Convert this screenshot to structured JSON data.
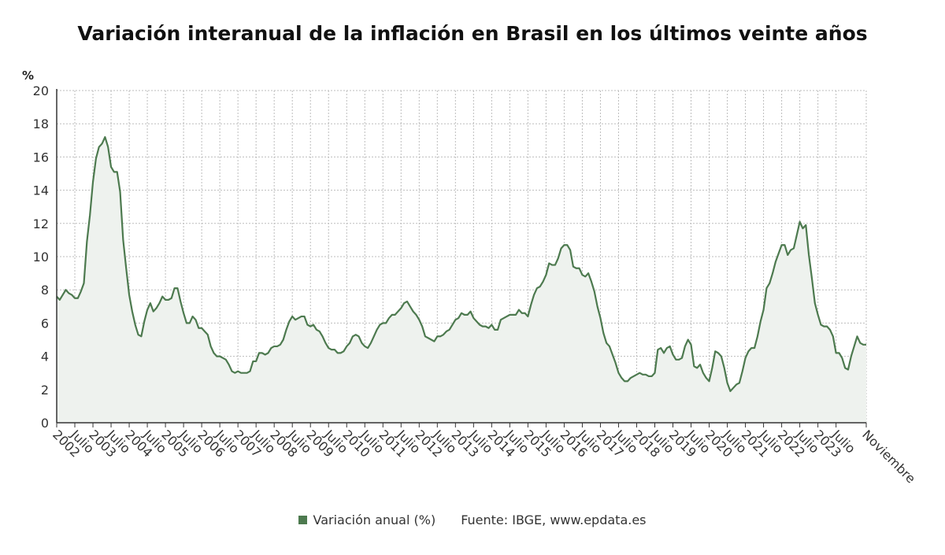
{
  "title": "Variación interanual de la inflación en Brasil en los últimos veinte años",
  "legend": {
    "series_label": "Variación anual (%)",
    "source": "Fuente: IBGE, www.epdata.es"
  },
  "colors": {
    "line": "#4d7a4f",
    "fill": "#eef2ee",
    "grid": "#bdbdbd",
    "axis": "#333333"
  },
  "chart_data": {
    "type": "area",
    "ylabel": "%",
    "ylim": [
      0,
      20
    ],
    "yticks": [
      0,
      2,
      4,
      6,
      8,
      10,
      12,
      14,
      16,
      18,
      20
    ],
    "grid": true,
    "legend_position": "bottom",
    "x_start": "2002-01",
    "x_end": "2023-11",
    "x_labels": [
      "2002",
      "Julio",
      "2003",
      "Julio",
      "2004",
      "Julio",
      "2005",
      "Julio",
      "2006",
      "Julio",
      "2007",
      "Julio",
      "2008",
      "Julio",
      "2009",
      "Julio",
      "2010",
      "Julio",
      "2011",
      "Julio",
      "2012",
      "Julio",
      "2013",
      "Julio",
      "2014",
      "Julio",
      "2015",
      "Julio",
      "2016",
      "Julio",
      "2017",
      "Julio",
      "2018",
      "Julio",
      "2019",
      "Julio",
      "2020",
      "Julio",
      "2021",
      "Julio",
      "2022",
      "Julio",
      "2023",
      "Julio",
      "Noviembre"
    ],
    "series": [
      {
        "name": "Variación anual (%)",
        "values": [
          7.6,
          7.4,
          7.7,
          8.0,
          7.8,
          7.7,
          7.5,
          7.5,
          7.9,
          8.4,
          10.9,
          12.5,
          14.5,
          15.9,
          16.6,
          16.8,
          17.2,
          16.6,
          15.4,
          15.1,
          15.1,
          13.9,
          11.0,
          9.3,
          7.7,
          6.7,
          5.9,
          5.3,
          5.2,
          6.1,
          6.8,
          7.2,
          6.7,
          6.9,
          7.2,
          7.6,
          7.4,
          7.4,
          7.5,
          8.1,
          8.1,
          7.3,
          6.6,
          6.0,
          6.0,
          6.4,
          6.2,
          5.7,
          5.7,
          5.5,
          5.3,
          4.6,
          4.2,
          4.0,
          4.0,
          3.9,
          3.8,
          3.5,
          3.1,
          3.0,
          3.1,
          3.0,
          3.0,
          3.0,
          3.1,
          3.7,
          3.7,
          4.2,
          4.2,
          4.1,
          4.2,
          4.5,
          4.6,
          4.6,
          4.7,
          5.0,
          5.6,
          6.1,
          6.4,
          6.2,
          6.3,
          6.4,
          6.4,
          5.9,
          5.8,
          5.9,
          5.6,
          5.5,
          5.2,
          4.8,
          4.5,
          4.4,
          4.4,
          4.2,
          4.2,
          4.3,
          4.6,
          4.8,
          5.2,
          5.3,
          5.2,
          4.8,
          4.6,
          4.5,
          4.8,
          5.2,
          5.6,
          5.9,
          6.0,
          6.0,
          6.3,
          6.5,
          6.5,
          6.7,
          6.9,
          7.2,
          7.3,
          7.0,
          6.7,
          6.5,
          6.2,
          5.8,
          5.2,
          5.1,
          5.0,
          4.9,
          5.2,
          5.2,
          5.3,
          5.5,
          5.6,
          5.9,
          6.2,
          6.3,
          6.6,
          6.5,
          6.5,
          6.7,
          6.3,
          6.1,
          5.9,
          5.8,
          5.8,
          5.7,
          5.9,
          5.6,
          5.6,
          6.2,
          6.3,
          6.4,
          6.5,
          6.5,
          6.5,
          6.8,
          6.6,
          6.6,
          6.4,
          7.1,
          7.7,
          8.1,
          8.2,
          8.5,
          8.9,
          9.6,
          9.5,
          9.5,
          9.9,
          10.5,
          10.7,
          10.7,
          10.4,
          9.4,
          9.3,
          9.3,
          8.9,
          8.8,
          9.0,
          8.5,
          7.9,
          7.0,
          6.3,
          5.4,
          4.8,
          4.6,
          4.1,
          3.6,
          3.0,
          2.7,
          2.5,
          2.5,
          2.7,
          2.8,
          2.9,
          3.0,
          2.9,
          2.9,
          2.8,
          2.8,
          3.0,
          4.4,
          4.5,
          4.2,
          4.5,
          4.6,
          4.1,
          3.8,
          3.8,
          3.9,
          4.6,
          5.0,
          4.7,
          3.4,
          3.3,
          3.5,
          3.0,
          2.7,
          2.5,
          3.3,
          4.3,
          4.2,
          4.0,
          3.3,
          2.4,
          1.9,
          2.1,
          2.3,
          2.4,
          3.1,
          3.9,
          4.3,
          4.5,
          4.5,
          5.2,
          6.1,
          6.8,
          8.1,
          8.4,
          9.0,
          9.7,
          10.2,
          10.7,
          10.7,
          10.1,
          10.4,
          10.5,
          11.3,
          12.1,
          11.7,
          11.9,
          10.1,
          8.7,
          7.2,
          6.5,
          5.9,
          5.8,
          5.8,
          5.6,
          5.2,
          4.2,
          4.2,
          3.9,
          3.3,
          3.2,
          4.0,
          4.6,
          5.2,
          4.8,
          4.7,
          4.7
        ]
      }
    ]
  }
}
